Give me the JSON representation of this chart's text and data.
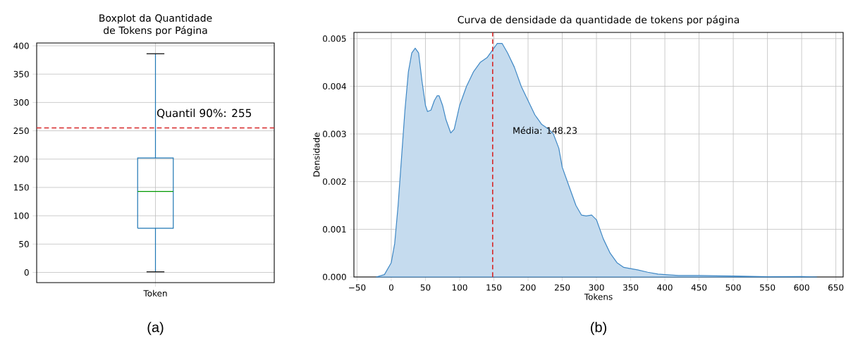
{
  "chart_data": [
    {
      "type": "box",
      "title": "Boxplot da Quantidade de Tokens por Página",
      "categories": [
        "Token"
      ],
      "color": "#1f77b4",
      "boxes": [
        {
          "low": 1,
          "q1": 78,
          "median": 143,
          "q3": 202,
          "high": 386
        }
      ],
      "ylim": [
        -18,
        405
      ],
      "yticks": [
        0,
        50,
        100,
        150,
        200,
        250,
        300,
        350,
        400
      ],
      "grid": true,
      "ref_lines": [
        {
          "axis": "y",
          "value": 255,
          "label": "Quantil 90%: 255",
          "color": "#d62728",
          "line_style": "dashed"
        }
      ],
      "annotations": [
        "(a)"
      ]
    },
    {
      "type": "area",
      "title": "Curva de densidade da quantidade de tokens por página",
      "xlabel": "Tokens",
      "ylabel": "Densidade",
      "series": [
        {
          "color": "#3f88c5",
          "x": [
            -22,
            -10,
            0,
            5,
            10,
            15,
            20,
            25,
            30,
            35,
            40,
            45,
            50,
            53,
            58,
            63,
            67,
            70,
            75,
            80,
            87,
            92,
            100,
            110,
            120,
            130,
            140,
            150,
            155,
            162,
            170,
            180,
            190,
            200,
            210,
            220,
            230,
            237,
            245,
            250,
            260,
            270,
            278,
            285,
            293,
            300,
            310,
            320,
            330,
            340,
            360,
            375,
            390,
            400,
            420,
            450,
            500,
            550,
            600,
            622
          ],
          "values": [
            0,
            5e-05,
            0.0003,
            0.0007,
            0.0015,
            0.0025,
            0.0035,
            0.0043,
            0.0047,
            0.0048,
            0.0047,
            0.0041,
            0.0036,
            0.00347,
            0.0035,
            0.0037,
            0.0038,
            0.0038,
            0.0036,
            0.0033,
            0.00302,
            0.0031,
            0.0036,
            0.004,
            0.0043,
            0.0045,
            0.0046,
            0.0048,
            0.0049,
            0.0049,
            0.0047,
            0.0044,
            0.004,
            0.0037,
            0.0034,
            0.0032,
            0.0031,
            0.003,
            0.0027,
            0.0023,
            0.0019,
            0.0015,
            0.0013,
            0.00128,
            0.0013,
            0.0012,
            0.0008,
            0.0005,
            0.0003,
            0.0002,
            0.00015,
            0.0001,
            6e-05,
            5e-05,
            3e-05,
            3e-05,
            2e-05,
            5e-06,
            1e-05,
            0
          ]
        }
      ],
      "xlim": [
        -54.6,
        660.7
      ],
      "ylim": [
        0,
        0.00513
      ],
      "xticks": [
        {
          "value": -50,
          "label": "−50"
        },
        0,
        50,
        100,
        150,
        200,
        250,
        300,
        350,
        400,
        450,
        500,
        550,
        600,
        650
      ],
      "yticks": [
        {
          "value": 0,
          "label": "0.000"
        },
        {
          "value": 0.001,
          "label": "0.001"
        },
        {
          "value": 0.002,
          "label": "0.002"
        },
        {
          "value": 0.003,
          "label": "0.003"
        },
        {
          "value": 0.004,
          "label": "0.004"
        },
        {
          "value": 0.005,
          "label": "0.005"
        }
      ],
      "grid": true,
      "ref_lines": [
        {
          "axis": "x",
          "value": 148.23,
          "label": "Média: 148.23",
          "color": "#d62728",
          "line_style": "dashed"
        }
      ],
      "annotations": [
        "(b)"
      ]
    }
  ]
}
